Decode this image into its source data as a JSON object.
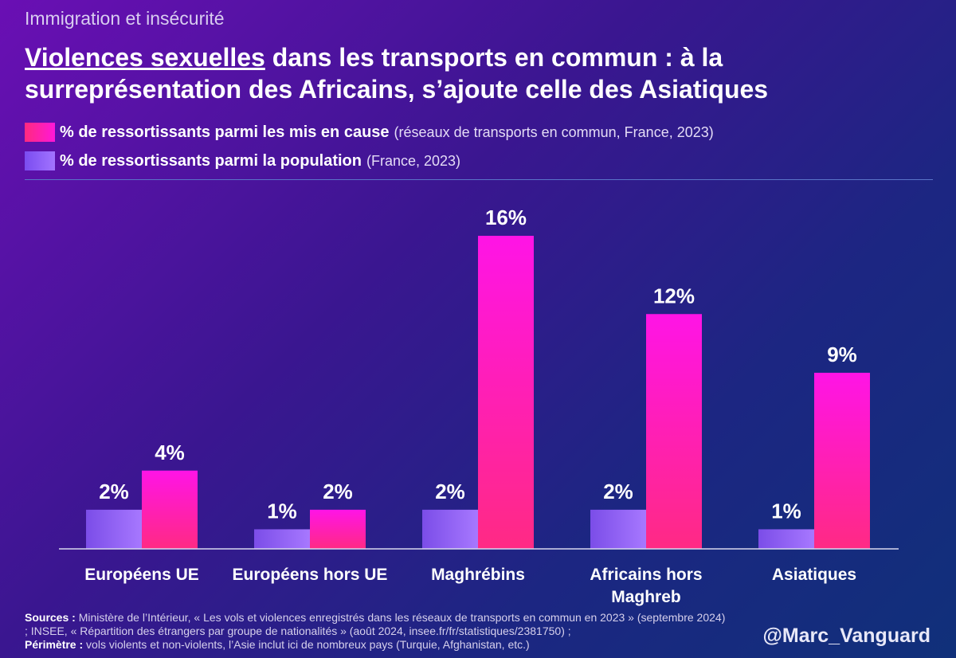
{
  "header": {
    "supertitle": "Immigration et insécurité",
    "title_highlight": "Violences sexuelles",
    "title_rest": " dans les transports en commun : à la surreprésentation des Africains, s’ajoute celle des Asiatiques"
  },
  "legend": {
    "items": [
      {
        "label": "% de ressortissants parmi les mis en cause",
        "note": "(réseaux de transports en commun, France, 2023)",
        "color": "#ff1fb8"
      },
      {
        "label": "% de ressortissants parmi la population",
        "note": "(France, 2023)",
        "color": "#8f63fb"
      }
    ]
  },
  "chart_data": {
    "type": "bar",
    "categories": [
      "Européens UE",
      "Européens hors UE",
      "Maghrébins",
      "Africains hors Maghreb",
      "Asiatiques"
    ],
    "series": [
      {
        "name": "% de ressortissants parmi la population",
        "values": [
          2,
          1,
          2,
          2,
          1
        ],
        "labels": [
          "2%",
          "1%",
          "2%",
          "2%",
          "1%"
        ],
        "color": "#8f63fb"
      },
      {
        "name": "% de ressortissants parmi les mis en cause",
        "values": [
          4,
          2,
          16,
          12,
          9
        ],
        "labels": [
          "4%",
          "2%",
          "16%",
          "12%",
          "9%"
        ],
        "color": "#ff1fb8"
      }
    ],
    "ylim": [
      0,
      16
    ]
  },
  "footer": {
    "sources_label": "Sources :",
    "sources_text": "Ministère de l’Intérieur, « Les vols et violences enregistrés dans les réseaux de transports en commun en 2023 » (septembre 2024) ; INSEE, « Répartition des étrangers par groupe de nationalités » (août 2024, insee.fr/fr/statistiques/2381750) ;",
    "perimeter_label": "Périmètre :",
    "perimeter_text": "vols violents et non-violents, l’Asie inclut ici de nombreux pays (Turquie, Afghanistan, etc.)",
    "handle": "@Marc_Vanguard"
  }
}
